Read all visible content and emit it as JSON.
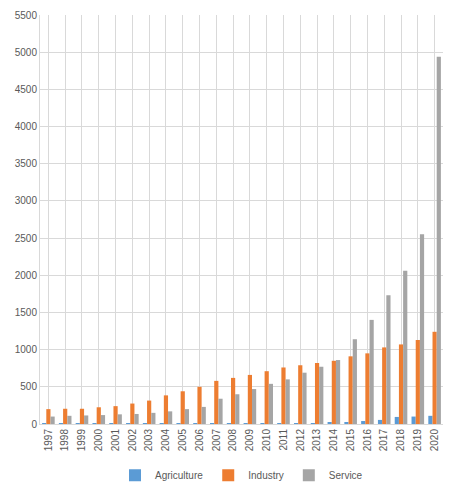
{
  "chart_data": {
    "type": "bar",
    "categories": [
      "1997",
      "1998",
      "1999",
      "2000",
      "2001",
      "2002",
      "2003",
      "2004",
      "2005",
      "2006",
      "2007",
      "2008",
      "2009",
      "2010",
      "2011",
      "2012",
      "2013",
      "2014",
      "2015",
      "2016",
      "2017",
      "2018",
      "2019",
      "2020"
    ],
    "series": [
      {
        "name": "Agriculture",
        "color": "#5b9bd5",
        "values": [
          3,
          3,
          3,
          3,
          3,
          3,
          3,
          4,
          4,
          5,
          5,
          6,
          6,
          7,
          8,
          9,
          10,
          15,
          25,
          40,
          55,
          95,
          100,
          110
        ]
      },
      {
        "name": "Industry",
        "color": "#ed7d31",
        "values": [
          200,
          205,
          205,
          225,
          240,
          275,
          315,
          385,
          440,
          500,
          580,
          620,
          660,
          710,
          760,
          790,
          820,
          850,
          910,
          950,
          1030,
          1070,
          1130,
          1240
        ]
      },
      {
        "name": "Service",
        "color": "#a5a5a5",
        "values": [
          100,
          110,
          115,
          120,
          130,
          135,
          150,
          170,
          200,
          230,
          340,
          400,
          470,
          540,
          600,
          690,
          770,
          860,
          1140,
          1400,
          1730,
          2060,
          2550,
          4940
        ]
      }
    ],
    "ylim": [
      0,
      5500
    ],
    "yticks": [
      0,
      500,
      1000,
      1500,
      2000,
      2500,
      3000,
      3500,
      4000,
      4500,
      5000,
      5500
    ],
    "grid": true,
    "legend": "bottom"
  }
}
